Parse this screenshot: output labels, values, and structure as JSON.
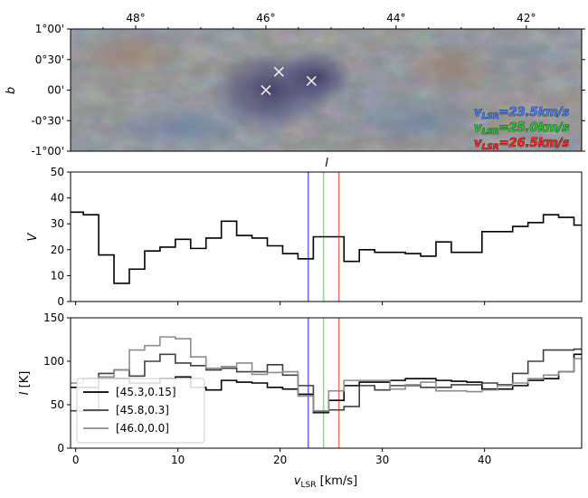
{
  "chart_data": [
    {
      "type": "image",
      "panel": "top",
      "xlabel": "l",
      "ylabel": "b",
      "xlim": [
        49,
        41.15
      ],
      "ylim": [
        -1,
        1
      ],
      "x_ticks": [
        {
          "value": 48,
          "label": "48°"
        },
        {
          "value": 46,
          "label": "46°"
        },
        {
          "value": 44,
          "label": "44°"
        },
        {
          "value": 42,
          "label": "42°"
        }
      ],
      "y_ticks": [
        {
          "value": 1,
          "label": "1°00'"
        },
        {
          "value": 0.5,
          "label": "0°30'"
        },
        {
          "value": 0,
          "label": "00'"
        },
        {
          "value": -0.5,
          "label": "-0°30'"
        },
        {
          "value": -1,
          "label": "-1°00'"
        }
      ],
      "markers": [
        {
          "l": 45.3,
          "b": 0.15
        },
        {
          "l": 45.8,
          "b": 0.3
        },
        {
          "l": 46.0,
          "b": 0.0
        }
      ],
      "velocity_labels": [
        {
          "text": "=23.5km/s",
          "prefix": "v",
          "sub": "LSR",
          "color": "#3f7fff"
        },
        {
          "text": "=25.0km/s",
          "prefix": "v",
          "sub": "LSR",
          "color": "#22cc22"
        },
        {
          "text": "=26.5km/s",
          "prefix": "v",
          "sub": "LSR",
          "color": "#ff2222"
        }
      ]
    },
    {
      "type": "line",
      "panel": "middle",
      "style": "step",
      "xlim": [
        -0.5,
        49.5
      ],
      "ylim": [
        0,
        50
      ],
      "ylabel": "V",
      "y_ticks": [
        0,
        10,
        20,
        30,
        40,
        50
      ],
      "x": [
        0,
        1.5,
        3,
        4.5,
        6,
        7.5,
        9,
        10.5,
        12,
        13.5,
        15,
        16.5,
        18,
        19.5,
        21,
        22.5,
        24,
        25.5,
        27,
        28.5,
        30,
        31.5,
        33,
        34.5,
        36,
        37.5,
        39,
        40.5,
        42,
        43.5,
        45,
        46.5,
        48,
        49.5
      ],
      "values": [
        34.5,
        33.5,
        18,
        7,
        12.5,
        19.5,
        21,
        24,
        20.5,
        24.5,
        31,
        25.5,
        24.5,
        21.5,
        18.5,
        16.5,
        25,
        25,
        15.5,
        20,
        19,
        19,
        18.5,
        17.5,
        23,
        19,
        19,
        27,
        27,
        29,
        30.5,
        33.5,
        32.5,
        29.5
      ],
      "vlines": [
        {
          "x": 22.75,
          "color": "#6b6bf0"
        },
        {
          "x": 24.25,
          "color": "#7ee87e"
        },
        {
          "x": 25.75,
          "color": "#f07a6a"
        }
      ]
    },
    {
      "type": "line",
      "panel": "bottom",
      "style": "step",
      "xlabel": "v_LSR [km/s]",
      "ylabel": "I [K]",
      "xlim": [
        -0.5,
        49.5
      ],
      "ylim": [
        0,
        150
      ],
      "x_ticks": [
        0,
        10,
        20,
        30,
        40
      ],
      "y_ticks": [
        0,
        50,
        100,
        150
      ],
      "x": [
        0,
        1.5,
        3,
        4.5,
        6,
        7.5,
        9,
        10.5,
        12,
        13.5,
        15,
        16.5,
        18,
        19.5,
        21,
        22.5,
        24,
        25.5,
        27,
        28.5,
        30,
        31.5,
        33,
        34.5,
        36,
        37.5,
        39,
        40.5,
        42,
        43.5,
        45,
        46.5,
        48,
        49.5
      ],
      "series": [
        {
          "name": "[45.3,0.15]",
          "color": "#000000",
          "values": [
            70,
            70,
            80,
            80,
            75,
            75,
            80,
            82,
            70,
            67,
            78,
            76,
            75,
            70,
            68,
            62,
            41,
            55,
            72,
            76,
            76,
            78,
            80,
            80,
            78,
            77,
            76,
            68,
            68,
            72,
            78,
            80,
            88,
            108
          ]
        },
        {
          "name": "[45.8,0.3]",
          "color": "#404040",
          "values": [
            43,
            43,
            86,
            90,
            83,
            100,
            108,
            98,
            95,
            90,
            92,
            88,
            88,
            96,
            84,
            72,
            42,
            44,
            48,
            72,
            67,
            72,
            72,
            70,
            70,
            73,
            73,
            75,
            73,
            86,
            100,
            113,
            113,
            114
          ]
        },
        {
          "name": "[46.0,0.0]",
          "color": "#8c8c8c",
          "values": [
            75,
            80,
            82,
            90,
            113,
            118,
            128,
            126,
            105,
            92,
            94,
            98,
            85,
            87,
            88,
            60,
            43,
            66,
            78,
            78,
            78,
            68,
            73,
            76,
            66,
            66,
            65,
            67,
            72,
            75,
            80,
            84,
            88,
            103
          ]
        }
      ],
      "legend": {
        "placement": "lower-left"
      },
      "vlines": [
        {
          "x": 22.75,
          "color": "#6b6bf0"
        },
        {
          "x": 24.25,
          "color": "#7ee87e"
        },
        {
          "x": 25.75,
          "color": "#f07a6a"
        }
      ]
    }
  ]
}
